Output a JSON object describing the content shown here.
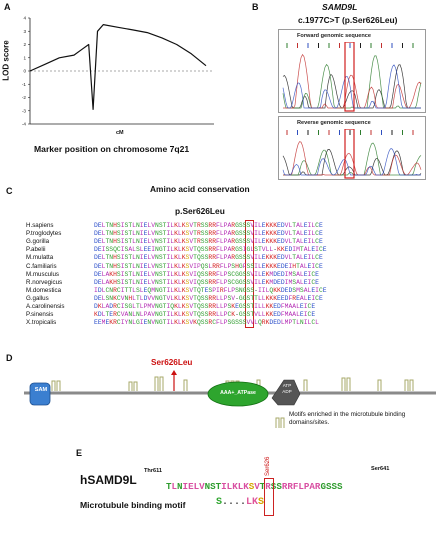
{
  "panel_a": {
    "letter": "A",
    "y_axis_label": "LOD score",
    "x_axis_label": "cM",
    "caption": "Marker position on chromosome 7q21",
    "chart_data": {
      "type": "line",
      "ylim": [
        -4,
        4
      ],
      "yticks": [
        "4",
        "3",
        "2",
        "1",
        "0",
        "-1",
        "-2",
        "-3",
        "-4"
      ],
      "threshold_line": 0,
      "x": [
        0,
        1,
        2,
        3,
        3.5,
        4,
        4.3,
        4.6,
        5,
        6,
        7,
        8,
        9,
        10,
        11,
        12
      ],
      "y": [
        0.0,
        0.5,
        1.0,
        1.2,
        1.6,
        2.0,
        -2.9,
        3.0,
        3.5,
        3.3,
        3.1,
        2.9,
        2.5,
        2.0,
        1.3,
        0.4
      ]
    }
  },
  "panel_b": {
    "letter": "B",
    "gene": "SAMD9L",
    "variant": "c.1977C>T (p.Ser626Leu)",
    "forward_label": "Forward genomic sequence",
    "reverse_label": "Reverse genomic sequence"
  },
  "panel_c": {
    "letter": "C",
    "title": "Amino acid conservation",
    "variant_label": "p.Ser626Leu",
    "species": [
      {
        "name": "H.sapiens",
        "pre": "DELTNHSISTLNIELVNSTILKLK",
        "site": "S",
        "post": "VTRSSRRFLPARGSSSVILEKKKEDVLTALEILCE"
      },
      {
        "name": "P.troglodytes",
        "pre": "DELTNHSISTLNIELVNSTILKLK",
        "site": "S",
        "post": "VTRSSRRFLPARGSSSVILEKKKEDVLTALEILCE"
      },
      {
        "name": "G.gorilla",
        "pre": "DELTNHSISTLNIELVNSTILKLK",
        "site": "S",
        "post": "VTRSSRRFLPARGSSSVILEKKKEDVLTALEILCE"
      },
      {
        "name": "P.abelii",
        "pre": "DEISSQCISALSLEEINGTILKLK",
        "site": "S",
        "post": "VTQSSRRFLPARGSIGLSTVLL-KKEDIMTALEICE"
      },
      {
        "name": "M.mulatta",
        "pre": "DELTNHSISTLNIELVNSTILKLK",
        "site": "S",
        "post": "VTQSSRRFLPARGSSSVILEKKKEDVLTALEILCE"
      },
      {
        "name": "C.familiaris",
        "pre": "DELTNHSISTLNIELVNSTILKLK",
        "site": "S",
        "post": "VIPQSLRRFLPSHGFSSILEKKKEDEIHTALEICE"
      },
      {
        "name": "M.musculus",
        "pre": "DELAKHSISTLNIELVNSTILKLK",
        "site": "S",
        "post": "VIQSSRRFLPSCGGSSVILEKMDEDIMSALEICE"
      },
      {
        "name": "R.norvegicus",
        "pre": "DELAKHSISTLNIELVNSTILKLK",
        "site": "S",
        "post": "VIQSSRRFLPSCGGSSVILEKMDEDIMSALEICE"
      },
      {
        "name": "M.domestica",
        "pre": "IDLCNRCITTLSLEQMNGTILKLK",
        "site": "S",
        "post": "VTQTESPIRFLPSNGSS-IILQKKDEDSMSALEICE"
      },
      {
        "name": "G.gallus",
        "pre": "DELSNKCVNHLTLDVVNGTVLKLK",
        "site": "S",
        "post": "VTQSSRRLLPSV-GGSTTLLKKKEEDFREALEICE"
      },
      {
        "name": "A.carolinensis",
        "pre": "DKLADRCISGLTLPMVNGTIQKLK",
        "site": "S",
        "post": "VTQSSRRLLPSKEGSSTILLKKEDFMAALEICE"
      },
      {
        "name": "P.sinensis",
        "pre": "KDLTERCVANLNLPAVNGTILKLK",
        "site": "S",
        "post": "VTQSSRRLLPCK-GSSTVLLKKEDFMAALEICE"
      },
      {
        "name": "X.tropicalis",
        "pre": "EEMEKRCIYNLGIENVNGTILKLK",
        "site": "S",
        "post": "VKQSSRCFLPSGSSSVVLQRKDEDLMPTLNILCL"
      }
    ]
  },
  "panel_d": {
    "letter": "D",
    "mutation_label": "Ser626Leu",
    "domain_sam": "SAM",
    "domain_aaa": "AAA+_ATPase",
    "domain_atp_adp": "ATP ADP",
    "legend_text": "Motifs enriched in the microtubule binding domains/sites.",
    "colors": {
      "sam": "#3b7fd0",
      "aaa": "#2ea52e",
      "atp": "#555555",
      "mutation": "#cc1111",
      "motif": "#a7a86a"
    }
  },
  "panel_e": {
    "letter": "E",
    "protein": "hSAMD9L",
    "start_label": "Thr611",
    "end_label": "Ser641",
    "site_label": "Ser626",
    "seq_pre": "TLNIELVNSTILKLK",
    "seq_site": "S",
    "seq_post": "VTRSSRRFLPARGSSS",
    "motif_label": "Microtubule binding motif",
    "motif_left": "S",
    "motif_dots": "....",
    "motif_right": "LK",
    "motif_site": "S"
  }
}
